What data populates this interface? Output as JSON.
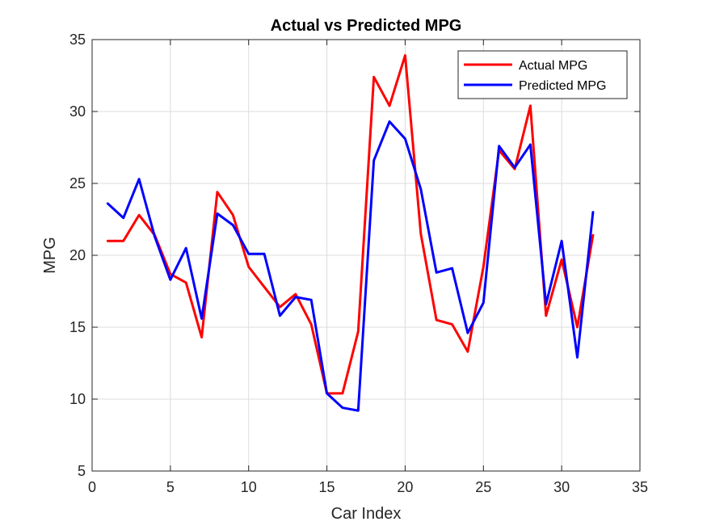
{
  "chart_data": {
    "type": "line",
    "title": "Actual vs Predicted MPG",
    "xlabel": "Car Index",
    "ylabel": "MPG",
    "xlim": [
      0,
      35
    ],
    "ylim": [
      5,
      35
    ],
    "xticks": [
      0,
      5,
      10,
      15,
      20,
      25,
      30,
      35
    ],
    "yticks": [
      5,
      10,
      15,
      20,
      25,
      30,
      35
    ],
    "grid": true,
    "legend_position": "top-right",
    "x": [
      1,
      2,
      3,
      4,
      5,
      6,
      7,
      8,
      9,
      10,
      11,
      12,
      13,
      14,
      15,
      16,
      17,
      18,
      19,
      20,
      21,
      22,
      23,
      24,
      25,
      26,
      27,
      28,
      29,
      30,
      31,
      32
    ],
    "series": [
      {
        "name": "Actual MPG",
        "color": "#ff0000",
        "values": [
          21.0,
          21.0,
          22.8,
          21.4,
          18.7,
          18.1,
          14.3,
          24.4,
          22.8,
          19.2,
          17.8,
          16.4,
          17.3,
          15.2,
          10.4,
          10.4,
          14.7,
          32.4,
          30.4,
          33.9,
          21.5,
          15.5,
          15.2,
          13.3,
          19.2,
          27.3,
          26.0,
          30.4,
          15.8,
          19.7,
          15.0,
          21.4
        ]
      },
      {
        "name": "Predicted MPG",
        "color": "#0000ff",
        "values": [
          23.6,
          22.6,
          25.3,
          21.3,
          18.3,
          20.5,
          15.6,
          22.9,
          22.1,
          20.1,
          20.1,
          15.8,
          17.1,
          16.9,
          10.4,
          9.4,
          9.2,
          26.6,
          29.3,
          28.1,
          24.6,
          18.8,
          19.1,
          14.6,
          16.7,
          27.6,
          26.1,
          27.7,
          16.6,
          21.0,
          12.9,
          23.0
        ]
      }
    ]
  }
}
